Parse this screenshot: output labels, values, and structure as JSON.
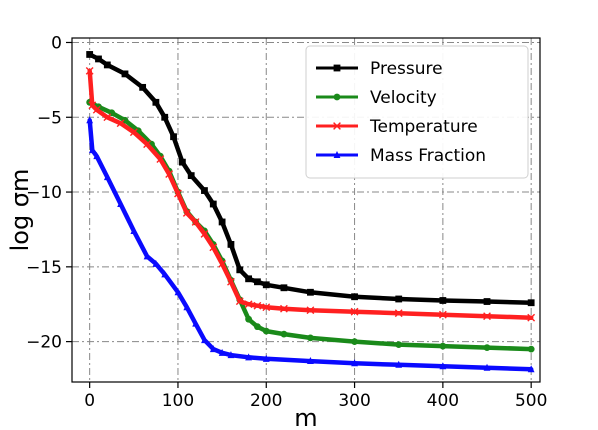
{
  "chart_data": {
    "type": "line",
    "xlabel": "m",
    "ylabel": "log σm",
    "xlim": [
      -20,
      510
    ],
    "ylim": [
      -22.7,
      0.3
    ],
    "xticks": [
      0,
      100,
      200,
      300,
      400,
      500
    ],
    "yticks": [
      0,
      -5,
      -10,
      -15,
      -20
    ],
    "xtick_labels": [
      "0",
      "100",
      "200",
      "300",
      "400",
      "500"
    ],
    "ytick_labels": [
      "0",
      "−5",
      "−10",
      "−15",
      "−20"
    ],
    "grid": true,
    "legend_position": "top-right",
    "series": [
      {
        "name": "Pressure",
        "color": "#000000",
        "marker": "square",
        "x": [
          0,
          10,
          20,
          40,
          60,
          75,
          85,
          95,
          105,
          115,
          130,
          140,
          150,
          160,
          170,
          180,
          190,
          200,
          220,
          250,
          300,
          350,
          400,
          450,
          500
        ],
        "y": [
          -0.8,
          -1.1,
          -1.5,
          -2.1,
          -3.0,
          -4.0,
          -5.0,
          -6.3,
          -8.0,
          -8.9,
          -9.9,
          -10.8,
          -12.0,
          -13.5,
          -15.2,
          -15.8,
          -16.0,
          -16.2,
          -16.4,
          -16.7,
          -17.0,
          -17.15,
          -17.25,
          -17.32,
          -17.4
        ]
      },
      {
        "name": "Velocity",
        "color": "#1a8a1a",
        "marker": "circle",
        "x": [
          0,
          10,
          25,
          40,
          55,
          70,
          80,
          90,
          100,
          110,
          120,
          130,
          140,
          150,
          160,
          170,
          180,
          190,
          200,
          220,
          250,
          300,
          350,
          400,
          450,
          500
        ],
        "y": [
          -4.0,
          -4.3,
          -4.7,
          -5.2,
          -5.9,
          -6.8,
          -7.6,
          -8.6,
          -10.0,
          -11.3,
          -12.0,
          -12.6,
          -13.5,
          -14.6,
          -15.9,
          -17.2,
          -18.5,
          -19.0,
          -19.3,
          -19.5,
          -19.75,
          -20.0,
          -20.2,
          -20.3,
          -20.4,
          -20.5
        ]
      },
      {
        "name": "Temperature",
        "color": "#ff2020",
        "marker": "x",
        "x": [
          0,
          3,
          8,
          20,
          35,
          50,
          65,
          80,
          90,
          100,
          110,
          120,
          130,
          140,
          150,
          160,
          170,
          180,
          190,
          200,
          220,
          250,
          300,
          350,
          400,
          450,
          500
        ],
        "y": [
          -1.9,
          -4.2,
          -4.5,
          -5.0,
          -5.4,
          -6.0,
          -6.8,
          -7.8,
          -8.8,
          -10.1,
          -11.4,
          -12.0,
          -12.8,
          -13.7,
          -14.8,
          -16.0,
          -17.3,
          -17.5,
          -17.6,
          -17.7,
          -17.8,
          -17.9,
          -18.0,
          -18.1,
          -18.2,
          -18.3,
          -18.4
        ]
      },
      {
        "name": "Mass Fraction",
        "color": "#0a0aff",
        "marker": "triangle",
        "x": [
          0,
          3,
          8,
          20,
          35,
          50,
          65,
          75,
          85,
          100,
          110,
          120,
          130,
          140,
          150,
          160,
          180,
          200,
          250,
          300,
          350,
          400,
          450,
          500
        ],
        "y": [
          -5.2,
          -7.2,
          -7.6,
          -9.0,
          -10.8,
          -12.6,
          -14.3,
          -14.8,
          -15.5,
          -16.7,
          -17.7,
          -18.8,
          -19.9,
          -20.5,
          -20.75,
          -20.9,
          -21.05,
          -21.15,
          -21.3,
          -21.45,
          -21.55,
          -21.65,
          -21.75,
          -21.85
        ]
      }
    ]
  }
}
